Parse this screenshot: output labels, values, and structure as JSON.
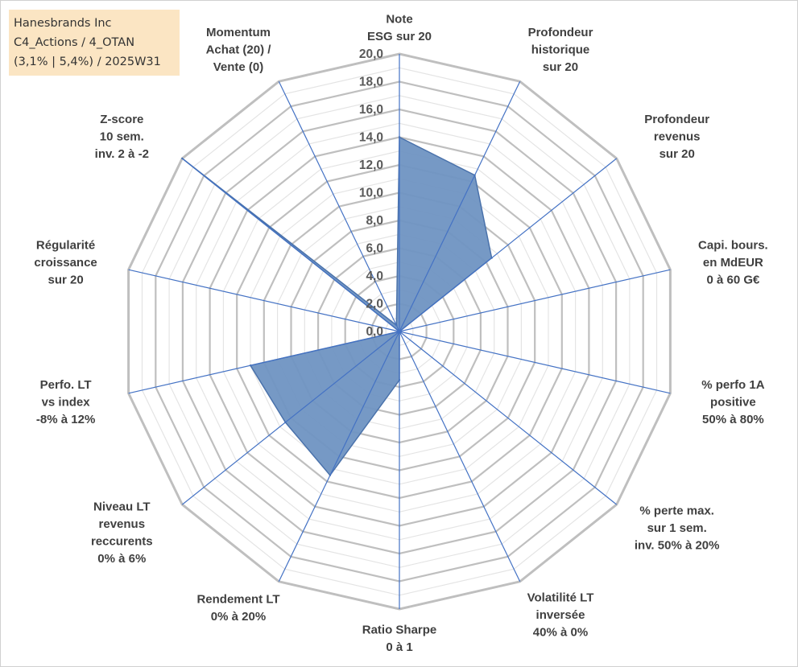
{
  "title_box": {
    "line1": "Hanesbrands Inc",
    "line2": "C4_Actions / 4_OTAN",
    "line3": "(3,1% | 5,4%) / 2025W31"
  },
  "chart_data": {
    "type": "radar",
    "rmin": 0,
    "rmax": 20,
    "tick_step": 2,
    "minor_grid_step": 1,
    "tick_labels": [
      "0,0",
      "2,0",
      "4,0",
      "6,0",
      "8,0",
      "10,0",
      "12,0",
      "14,0",
      "16,0",
      "18,0",
      "20,0"
    ],
    "axes": [
      {
        "label": [
          "Note",
          "ESG sur 20"
        ],
        "value": 14.0
      },
      {
        "label": [
          "Profondeur",
          "historique",
          "sur 20"
        ],
        "value": 12.5
      },
      {
        "label": [
          "Profondeur",
          "revenus",
          "sur 20"
        ],
        "value": 8.5
      },
      {
        "label": [
          "Capi. bours.",
          "en MdEUR",
          "0 à 60 G€"
        ],
        "value": 0.0
      },
      {
        "label": [
          "% perfo 1A",
          "positive",
          "50% à 80%"
        ],
        "value": 0.0
      },
      {
        "label": [
          "% perte max.",
          "sur 1 sem.",
          "inv. 50% à 20%"
        ],
        "value": 0.0
      },
      {
        "label": [
          "Volatilité LT",
          "inversée",
          "40% à 0%"
        ],
        "value": 0.0
      },
      {
        "label": [
          "Ratio Sharpe",
          "0 à 1"
        ],
        "value": 3.5
      },
      {
        "label": [
          "Rendement LT",
          "0% à 20%"
        ],
        "value": 11.5
      },
      {
        "label": [
          "Niveau LT",
          "revenus",
          "reccurents",
          "0% à 6%"
        ],
        "value": 10.5
      },
      {
        "label": [
          "Perfo. LT",
          "vs index",
          "-8% à 12%"
        ],
        "value": 11.0
      },
      {
        "label": [
          "Régularité",
          "croissance",
          "sur 20"
        ],
        "value": 0.0
      },
      {
        "label": [
          "Z-score",
          "10 sem.",
          "inv. 2 à -2"
        ],
        "value": 20.0
      },
      {
        "label": [
          "Momentum",
          "Achat (20) /",
          "Vente (0)"
        ],
        "value": 0.5
      }
    ],
    "colors": {
      "fill": "#6f94c2",
      "outline": "#4a72ab",
      "spoke": "#4472c4",
      "major_grid": "#bfbfbf",
      "minor_grid": "#e4e4e4"
    }
  }
}
